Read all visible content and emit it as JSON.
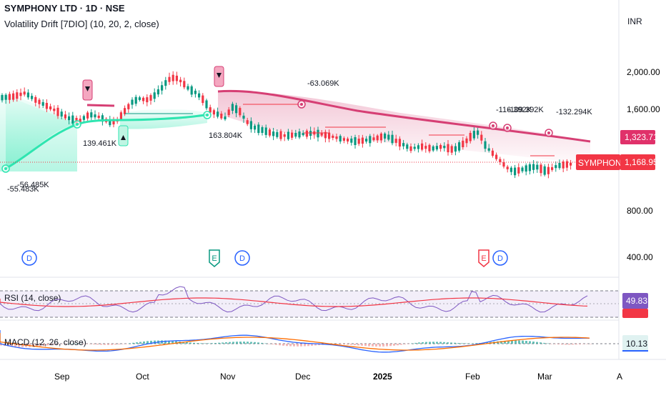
{
  "header": {
    "symbol_line": "SYMPHONY LTD · 1D · NSE",
    "indicator_line": "Volatility Drift [7DIO] (10, 20, 2, close)",
    "currency": "INR"
  },
  "price_axis": {
    "ticks": [
      "2,000.00",
      "1,600.00",
      "800.00",
      "400.00"
    ],
    "badges": {
      "upper_value": "1,323.71",
      "upper_color": "#e0316a",
      "symbol_tag": "SYMPHONY",
      "last_price": "1,168.95",
      "last_color": "#f23645"
    }
  },
  "time_axis": [
    "Sep",
    "Oct",
    "Nov",
    "Dec",
    "2025",
    "Feb",
    "Mar",
    "A"
  ],
  "chart_data": {
    "type": "candlestick",
    "price_range": [
      0,
      2250
    ],
    "trend_upper_color": "#d63f74",
    "trend_lower_color": "#2ee5b0",
    "annotations": [
      "-55.483K",
      "-56.485K",
      "139.461K",
      "163.804K",
      "-63.069K",
      "-116.392K",
      "-109.392K",
      "-132.294K"
    ],
    "event_markers": [
      "D",
      "E",
      "D",
      "E",
      "D"
    ],
    "colors": {
      "up": "#089981",
      "down": "#f23645"
    }
  },
  "rsi": {
    "label": "RSI (14, close)",
    "value": "49.83",
    "value_color": "#7e57c2"
  },
  "macd": {
    "label": "MACD (12, 26, close)",
    "value": "10.13",
    "value_color": "#26a69a"
  }
}
